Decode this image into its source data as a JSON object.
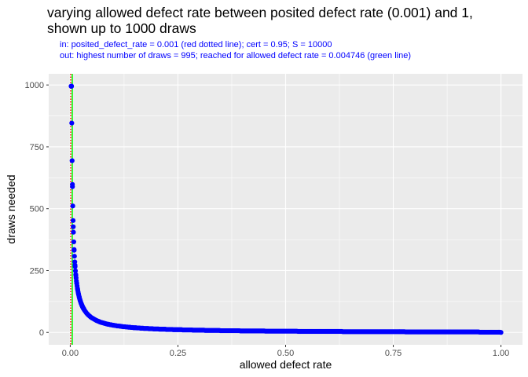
{
  "chart_data": {
    "type": "scatter",
    "title_lines": [
      "varying allowed defect rate between posited defect rate (0.001) and 1,",
      "shown up to 1000 draws"
    ],
    "subtitle_lines": [
      "in: posited_defect_rate = 0.001 (red dotted line); cert = 0.95; S = 10000",
      "out: highest number of draws = 995; reached for allowed defect rate = 0.004746 (green line)"
    ],
    "xlabel": "allowed defect rate",
    "ylabel": "draws needed",
    "xlim": [
      -0.05,
      1.05
    ],
    "ylim": [
      -50,
      1045
    ],
    "x_ticks": [
      {
        "value": 0,
        "label": "0.00"
      },
      {
        "value": 0.25,
        "label": "0.25"
      },
      {
        "value": 0.5,
        "label": "0.50"
      },
      {
        "value": 0.75,
        "label": "0.75"
      },
      {
        "value": 1,
        "label": "1.00"
      }
    ],
    "y_ticks": [
      {
        "value": 0,
        "label": "0"
      },
      {
        "value": 250,
        "label": "250"
      },
      {
        "value": 500,
        "label": "500"
      },
      {
        "value": 750,
        "label": "750"
      },
      {
        "value": 1000,
        "label": "1000"
      }
    ],
    "x_minor": [
      0.125,
      0.375,
      0.625,
      0.875
    ],
    "y_minor": [
      125,
      375,
      625,
      875
    ],
    "reference_lines": [
      {
        "x": 0.001,
        "color": "#ff0000",
        "style": "dotted"
      },
      {
        "x": 0.004746,
        "color": "#00ff00",
        "style": "solid"
      }
    ],
    "series": [
      {
        "color": "#0000ff",
        "model": "draws = ln(1 - cert) / ln(1 - allowed defect rate)",
        "cert": 0.95,
        "x_range": [
          0.003,
          1
        ],
        "max_draws": 995,
        "max_at_x": 0.004746
      }
    ],
    "grid": true,
    "legend": "none",
    "panel_background": "#ebebeb"
  }
}
